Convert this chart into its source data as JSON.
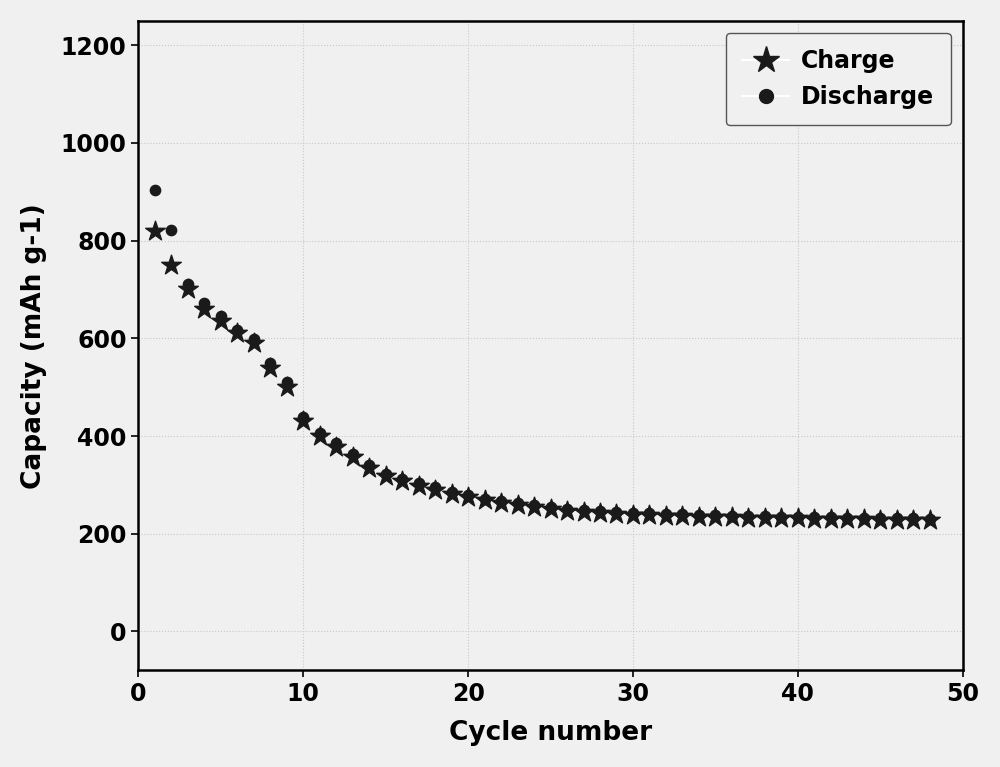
{
  "title": "",
  "xlabel": "Cycle number",
  "ylabel": "Capacity (mAh g-1)",
  "xlim": [
    0,
    50
  ],
  "ylim": [
    -80,
    1250
  ],
  "yticks": [
    0,
    200,
    400,
    600,
    800,
    1000,
    1200
  ],
  "xticks": [
    0,
    10,
    20,
    30,
    40,
    50
  ],
  "charge_cycles": [
    1,
    2,
    3,
    4,
    5,
    6,
    7,
    8,
    9,
    10,
    11,
    12,
    13,
    14,
    15,
    16,
    17,
    18,
    19,
    20,
    21,
    22,
    23,
    24,
    25,
    26,
    27,
    28,
    29,
    30,
    31,
    32,
    33,
    34,
    35,
    36,
    37,
    38,
    39,
    40,
    41,
    42,
    43,
    44,
    45,
    46,
    47,
    48
  ],
  "charge_values": [
    820,
    750,
    700,
    660,
    635,
    610,
    590,
    540,
    500,
    430,
    400,
    378,
    358,
    335,
    318,
    308,
    298,
    290,
    282,
    275,
    268,
    263,
    258,
    254,
    250,
    247,
    245,
    243,
    241,
    239,
    238,
    237,
    236,
    235,
    234,
    234,
    233,
    233,
    232,
    232,
    231,
    231,
    230,
    230,
    229,
    229,
    229,
    228
  ],
  "discharge_cycles": [
    1,
    2,
    3,
    4,
    5,
    6,
    7,
    8,
    9,
    10,
    11,
    12,
    13,
    14,
    15,
    16,
    17,
    18,
    19,
    20,
    21,
    22,
    23,
    24,
    25,
    26,
    27,
    28,
    29,
    30,
    31,
    32,
    33,
    34,
    35,
    36,
    37,
    38,
    39,
    40,
    41,
    42,
    43,
    44,
    45,
    46,
    47,
    48
  ],
  "discharge_values": [
    903,
    822,
    712,
    672,
    645,
    618,
    598,
    550,
    510,
    438,
    407,
    385,
    364,
    341,
    323,
    313,
    303,
    295,
    286,
    279,
    272,
    267,
    262,
    258,
    254,
    251,
    249,
    247,
    245,
    243,
    242,
    241,
    240,
    239,
    238,
    237,
    237,
    236,
    235,
    235,
    234,
    234,
    233,
    233,
    232,
    232,
    232,
    231
  ],
  "marker_color": "#1a1a1a",
  "background_color": "#f0f0f0",
  "grid_color": "#c8c8c8",
  "legend_fontsize": 17,
  "axis_fontsize": 19,
  "tick_fontsize": 17
}
